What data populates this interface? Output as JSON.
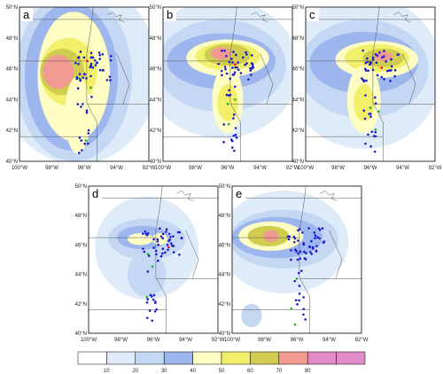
{
  "panels": [
    {
      "label": "a"
    },
    {
      "label": "b"
    },
    {
      "label": "c"
    },
    {
      "label": "d"
    },
    {
      "label": "e"
    }
  ],
  "lat_labels": [
    "50°N",
    "48°N",
    "46°N",
    "44°N",
    "42°N",
    "40°N"
  ],
  "lon_labels": [
    "100°W",
    "98°W",
    "96°W",
    "94°W",
    "92°W"
  ],
  "colorbar": {
    "labels": [
      10,
      20,
      30,
      40,
      50,
      60,
      70,
      80
    ]
  }
}
